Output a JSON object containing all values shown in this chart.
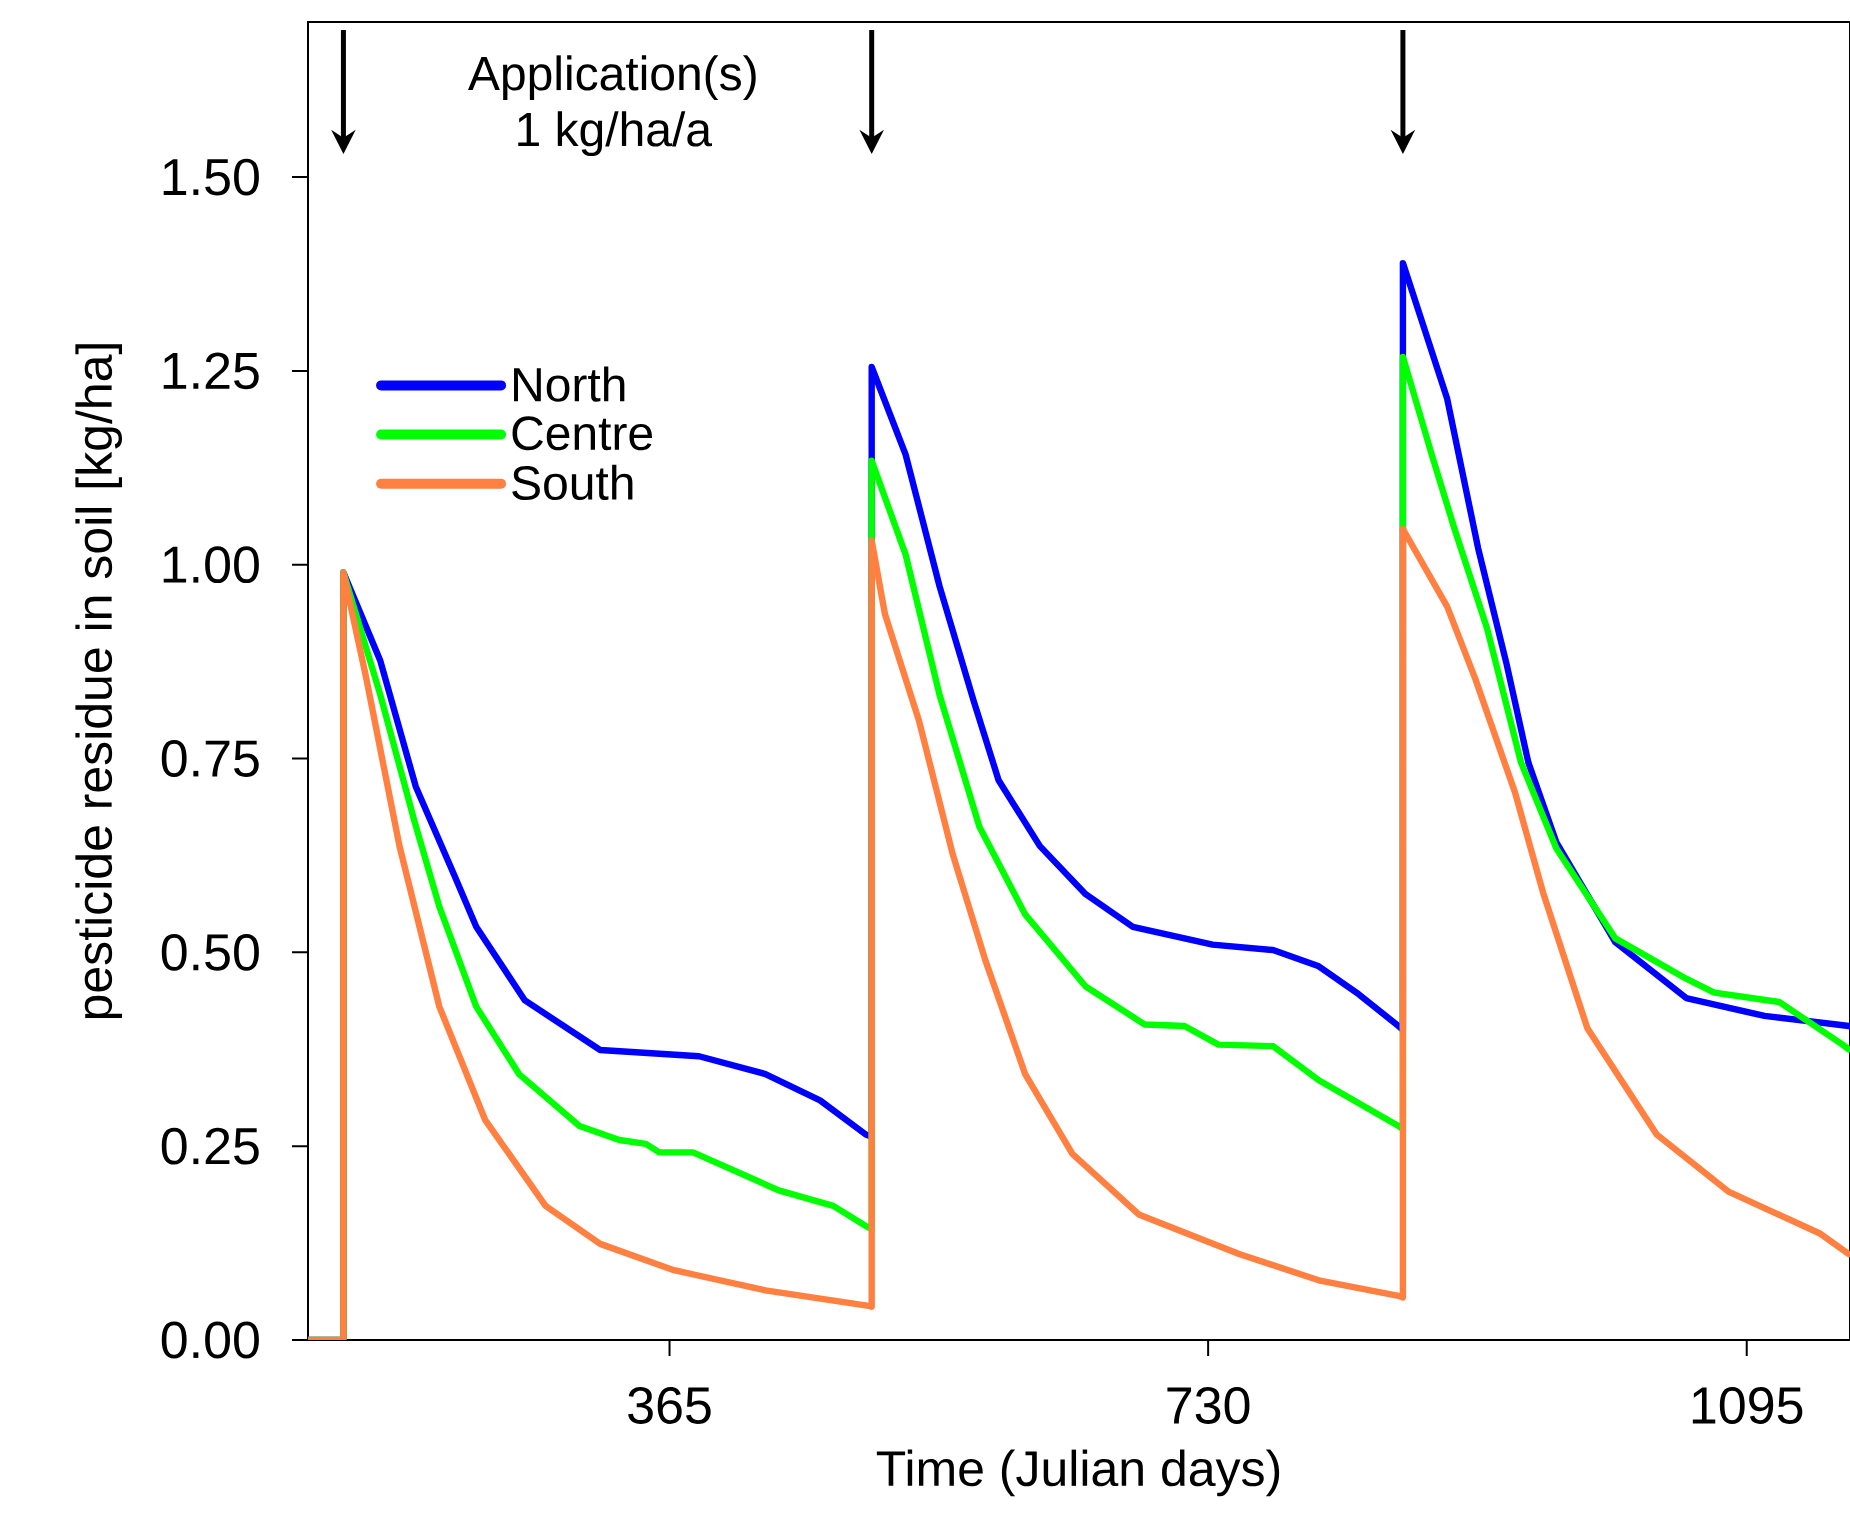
{
  "chart_data": {
    "type": "line",
    "xlabel": "Time (Julian days)",
    "ylabel": "pesticide residue in soil [kg/ha]",
    "annotations": [
      "Application(s)",
      "1 kg/ha/a"
    ],
    "xlim": [
      120,
      1165
    ],
    "ylim": [
      0,
      1.7
    ],
    "xticks": [
      365,
      730,
      1095
    ],
    "yticks": [
      {
        "value": 0,
        "label": "0.00"
      },
      {
        "value": 0.25,
        "label": "0.25"
      },
      {
        "value": 0.5,
        "label": "0.50"
      },
      {
        "value": 0.75,
        "label": "0.75"
      },
      {
        "value": 1.0,
        "label": "1.00"
      },
      {
        "value": 1.25,
        "label": "1.25"
      },
      {
        "value": 1.5,
        "label": "1.50"
      }
    ],
    "legend": "top left",
    "marker": "none",
    "line_style": "solid",
    "series": [
      {
        "name": "North",
        "color": "#0000ff",
        "x": [
          120,
          144,
          144,
          169,
          193,
          219,
          234,
          267,
          318,
          385,
          430,
          467,
          498,
          502,
          502,
          525,
          548,
          571,
          588,
          616,
          647,
          679,
          733,
          774,
          805,
          832,
          859,
          862,
          862,
          892,
          913,
          932,
          947,
          966,
          1006,
          1054,
          1107,
          1156,
          1164
        ],
        "values": [
          0,
          0,
          0.99,
          0.876,
          0.714,
          0.6,
          0.533,
          0.438,
          0.374,
          0.366,
          0.343,
          0.309,
          0.265,
          0.262,
          1.255,
          1.142,
          0.972,
          0.825,
          0.722,
          0.637,
          0.575,
          0.533,
          0.51,
          0.503,
          0.482,
          0.446,
          0.405,
          0.4,
          1.389,
          1.214,
          1.021,
          0.874,
          0.745,
          0.642,
          0.513,
          0.441,
          0.418,
          0.407,
          0.405
        ]
      },
      {
        "name": "Centre",
        "color": "#00ff00",
        "x": [
          120,
          144,
          144,
          169,
          192,
          209,
          234,
          263,
          304,
          331,
          349,
          358,
          381,
          439,
          476,
          498,
          502,
          502,
          525,
          548,
          575,
          606,
          647,
          687,
          714,
          737,
          774,
          805,
          859,
          862,
          862,
          882,
          897,
          919,
          942,
          966,
          1006,
          1054,
          1073,
          1117,
          1160,
          1164
        ],
        "values": [
          0,
          0,
          0.99,
          0.832,
          0.67,
          0.559,
          0.43,
          0.343,
          0.276,
          0.258,
          0.253,
          0.242,
          0.242,
          0.193,
          0.173,
          0.147,
          0.143,
          1.134,
          1.013,
          0.832,
          0.662,
          0.549,
          0.456,
          0.407,
          0.405,
          0.381,
          0.379,
          0.335,
          0.276,
          0.272,
          1.268,
          1.139,
          1.046,
          0.918,
          0.745,
          0.634,
          0.518,
          0.466,
          0.448,
          0.436,
          0.381,
          0.375
        ]
      },
      {
        "name": "South",
        "color": "#ff8040",
        "x": [
          120,
          144,
          144,
          159,
          182,
          209,
          240,
          281,
          318,
          368,
          430,
          500,
          502,
          502,
          511,
          534,
          557,
          579,
          606,
          638,
          683,
          751,
          805,
          859,
          862,
          862,
          892,
          911,
          938,
          957,
          987,
          1034,
          1083,
          1145,
          1164
        ],
        "values": [
          0,
          0,
          0.99,
          0.858,
          0.637,
          0.43,
          0.284,
          0.173,
          0.124,
          0.09,
          0.064,
          0.044,
          0.043,
          1.031,
          0.936,
          0.799,
          0.626,
          0.49,
          0.343,
          0.24,
          0.162,
          0.111,
          0.077,
          0.057,
          0.055,
          1.046,
          0.946,
          0.853,
          0.706,
          0.577,
          0.402,
          0.265,
          0.191,
          0.137,
          0.111
        ]
      }
    ]
  }
}
